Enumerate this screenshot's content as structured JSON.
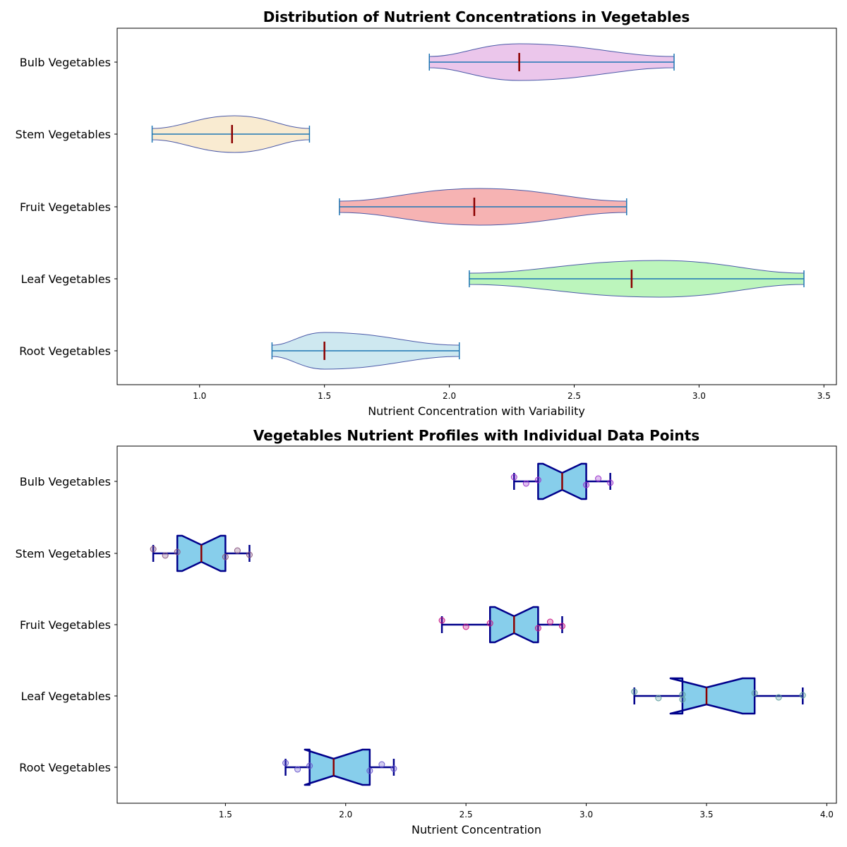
{
  "chart_data": [
    {
      "type": "violin",
      "title": "Distribution of Nutrient Concentrations in Vegetables",
      "xlabel": "Nutrient Concentration with Variability",
      "ylabel": "",
      "xlim": [
        0.67,
        3.55
      ],
      "xticks": [
        "1.0",
        "1.5",
        "2.0",
        "2.5",
        "3.0",
        "3.5"
      ],
      "categories": [
        "Root Vegetables",
        "Leaf Vegetables",
        "Fruit Vegetables",
        "Stem Vegetables",
        "Bulb Vegetables"
      ],
      "series": [
        {
          "category": "Root Vegetables",
          "min": 1.29,
          "max": 2.04,
          "median": 1.5,
          "peak": 1.5,
          "color": "#add8e6"
        },
        {
          "category": "Leaf Vegetables",
          "min": 2.08,
          "max": 3.42,
          "median": 2.73,
          "peak": 2.84,
          "color": "#90ee90"
        },
        {
          "category": "Fruit Vegetables",
          "min": 1.56,
          "max": 2.71,
          "median": 2.1,
          "peak": 2.12,
          "color": "#f08080"
        },
        {
          "category": "Stem Vegetables",
          "min": 0.81,
          "max": 1.44,
          "median": 1.13,
          "peak": 1.14,
          "color": "#f5deb3"
        },
        {
          "category": "Bulb Vegetables",
          "min": 1.92,
          "max": 2.9,
          "median": 2.28,
          "peak": 2.28,
          "color": "#dda0dd"
        }
      ]
    },
    {
      "type": "box",
      "title": "Vegetables Nutrient Profiles with Individual Data Points",
      "xlabel": "Nutrient Concentration",
      "ylabel": "",
      "xlim": [
        1.05,
        4.04
      ],
      "xticks": [
        "1.5",
        "2.0",
        "2.5",
        "3.0",
        "3.5",
        "4.0"
      ],
      "categories": [
        "Root Vegetables",
        "Leaf Vegetables",
        "Fruit Vegetables",
        "Stem Vegetables",
        "Bulb Vegetables"
      ],
      "series": [
        {
          "category": "Root Vegetables",
          "whisker_low": 1.75,
          "q1": 1.85,
          "median": 1.95,
          "q3": 2.1,
          "whisker_high": 2.2,
          "notch_low": 1.83,
          "notch_high": 2.07,
          "points": [
            1.75,
            1.8,
            1.85,
            2.1,
            2.15,
            2.2
          ],
          "point_color": "#6a5acd"
        },
        {
          "category": "Leaf Vegetables",
          "whisker_low": 3.2,
          "q1": 3.4,
          "median": 3.5,
          "q3": 3.7,
          "whisker_high": 3.9,
          "notch_low": 3.35,
          "notch_high": 3.65,
          "points": [
            3.2,
            3.3,
            3.4,
            3.4,
            3.7,
            3.8,
            3.9
          ],
          "point_color": "#5f9ea0"
        },
        {
          "category": "Fruit Vegetables",
          "whisker_low": 2.4,
          "q1": 2.6,
          "median": 2.7,
          "q3": 2.8,
          "whisker_high": 2.9,
          "notch_low": 2.62,
          "notch_high": 2.78,
          "points": [
            2.4,
            2.5,
            2.6,
            2.8,
            2.85,
            2.9
          ],
          "point_color": "#c71585"
        },
        {
          "category": "Stem Vegetables",
          "whisker_low": 1.2,
          "q1": 1.3,
          "median": 1.4,
          "q3": 1.5,
          "whisker_high": 1.6,
          "notch_low": 1.32,
          "notch_high": 1.48,
          "points": [
            1.2,
            1.25,
            1.3,
            1.5,
            1.55,
            1.6
          ],
          "point_color": "#8b5a83"
        },
        {
          "category": "Bulb Vegetables",
          "whisker_low": 2.7,
          "q1": 2.8,
          "median": 2.9,
          "q3": 3.0,
          "whisker_high": 3.1,
          "notch_low": 2.82,
          "notch_high": 2.98,
          "points": [
            2.7,
            2.75,
            2.8,
            3.0,
            3.05,
            3.1
          ],
          "point_color": "#9932cc"
        }
      ]
    }
  ]
}
